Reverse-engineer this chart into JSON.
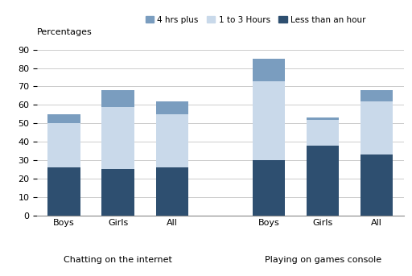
{
  "group_labels": [
    "Boys",
    "Girls",
    "All",
    "Boys",
    "Girls",
    "All"
  ],
  "category_labels": [
    "Chatting on the internet",
    "Playing on games console"
  ],
  "less_than_hour": [
    26,
    25,
    26,
    30,
    38,
    33
  ],
  "one_to_3_hours": [
    24,
    34,
    29,
    43,
    14,
    29
  ],
  "four_hrs_plus": [
    5,
    9,
    7,
    12,
    1,
    6
  ],
  "color_less_than_hour": "#2e4f70",
  "color_1_to_3_hours": "#c9d9ea",
  "color_4_hrs_plus": "#7a9dbf",
  "top_label": "Percentages",
  "yticks": [
    0,
    10,
    20,
    30,
    40,
    50,
    60,
    70,
    80,
    90
  ],
  "legend_labels": [
    "4 hrs plus",
    "1 to 3 Hours",
    "Less than an hour"
  ],
  "bar_width": 0.6,
  "background_color": "#ffffff",
  "grid_color": "#cccccc"
}
